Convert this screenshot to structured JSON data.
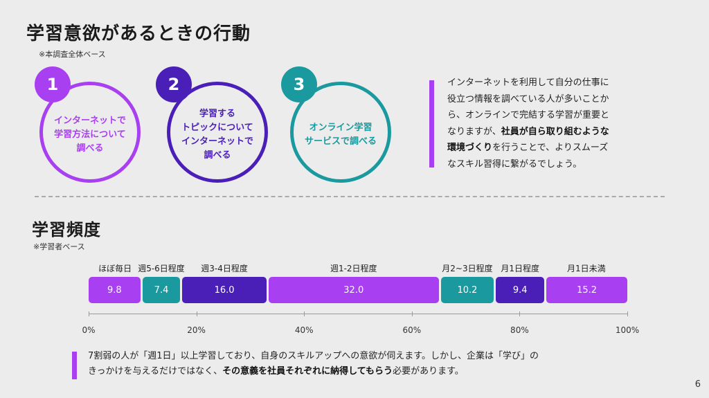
{
  "title": "学習意欲があるときの行動",
  "section1_note": "※本調査全体ベース",
  "actions": [
    {
      "number": "1",
      "text": "インターネットで\n学習方法について\n調べる",
      "color": "#a83ff0"
    },
    {
      "number": "2",
      "text": "学習する\nトピックについて\nインターネットで\n調べる",
      "color": "#4a1fb8"
    },
    {
      "number": "3",
      "text": "オンライン学習\nサービスで調べる",
      "color": "#1a9a9e"
    }
  ],
  "side_text": {
    "line1": "インターネットを利用して自分の仕事に",
    "line2": "役立つ情報を調べている人が多いことか",
    "line3": "ら、オンラインで完結する学習が重要と",
    "line4_pre": "なりますが、",
    "line4_bold": "社員が自ら取り組むような",
    "line5_bold": "環境づくり",
    "line5_post": "を行うことで、よりスムーズ",
    "line6": "なスキル習得に繋がるでしょう。"
  },
  "section2_title": "学習頻度",
  "section2_note": "※学習者ベース",
  "chart_data": {
    "type": "bar",
    "stacked": true,
    "orientation": "horizontal",
    "categories": [
      "ほぼ毎日",
      "週5-6日程度",
      "週3-4日程度",
      "週1-2日程度",
      "月2~3日程度",
      "月1日程度",
      "月1日未満"
    ],
    "values": [
      9.8,
      7.4,
      16.0,
      32.0,
      10.2,
      9.4,
      15.2
    ],
    "value_labels": [
      "9.8",
      "7.4",
      "16.0",
      "32.0",
      "10.2",
      "9.4",
      "15.2"
    ],
    "colors": [
      "#a83ff0",
      "#1a9a9e",
      "#4a1fb8",
      "#a83ff0",
      "#1a9a9e",
      "#4a1fb8",
      "#a83ff0"
    ],
    "xlim": [
      0,
      100
    ],
    "x_ticks": [
      "0%",
      "20%",
      "40%",
      "60%",
      "80%",
      "100%"
    ],
    "x_tick_values": [
      0,
      20,
      40,
      60,
      80,
      100
    ]
  },
  "bottom_text": {
    "line1": "7割弱の人が「週1日」以上学習しており、自身のスキルアップへの意欲が伺えます。しかし、企業は「学び」の",
    "line2_pre": "きっかけを与えるだけではなく、",
    "line2_bold": "その意義を社員それぞれに納得してもらう",
    "line2_post": "必要があります。"
  },
  "page_number": "6"
}
